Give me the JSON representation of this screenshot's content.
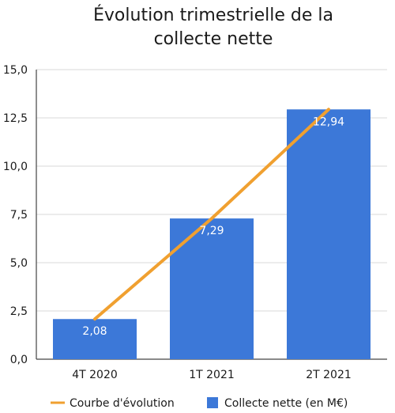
{
  "chart_data": {
    "type": "bar",
    "title": [
      "Évolution trimestrielle de la",
      "collecte nette"
    ],
    "categories": [
      "4T 2020",
      "1T 2021",
      "2T 2021"
    ],
    "series": [
      {
        "name": "Collecte nette (en M€)",
        "kind": "bar",
        "values": [
          2.08,
          7.29,
          12.94
        ],
        "labels": [
          "2,08",
          "7,29",
          "12,94"
        ],
        "color": "#3c78d8"
      },
      {
        "name": "Courbe d'évolution",
        "kind": "line",
        "values": [
          2.08,
          7.29,
          12.94
        ],
        "color": "#f0a030"
      }
    ],
    "ylim": [
      0,
      15
    ],
    "yticks": [
      0,
      2.5,
      5,
      7.5,
      10,
      12.5,
      15
    ],
    "ytick_labels": [
      "0,0",
      "2,5",
      "5,0",
      "7,5",
      "10,0",
      "12,5",
      "15,0"
    ],
    "grid": true,
    "legend_position": "bottom"
  }
}
